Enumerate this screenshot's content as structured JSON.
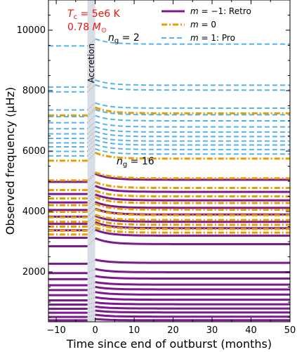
{
  "chart_data": {
    "type": "line",
    "xlabel": "Time since end of outburst (months)",
    "ylabel": "Observed frequency (μHz)",
    "xlim": [
      -12,
      50
    ],
    "ylim": [
      350,
      11000
    ],
    "x_ticks": [
      -10,
      0,
      10,
      20,
      30,
      40,
      50
    ],
    "x_tick_labels": [
      "−10",
      "0",
      "10",
      "20",
      "30",
      "40",
      "50"
    ],
    "y_ticks": [
      2000,
      4000,
      6000,
      8000,
      10000
    ],
    "y_tick_labels": [
      "2000",
      "4000",
      "6000",
      "8000",
      "10000"
    ],
    "accretion_band": {
      "x": [
        -2,
        0
      ],
      "label": "Accretion"
    },
    "annotations": {
      "tc": "T_c = 5e6 K",
      "mass": "0.78 M_⊙",
      "ng_low": "n_g = 2",
      "ng_high": "n_g = 16"
    },
    "legend_placement": "top-right",
    "series": [
      {
        "name": "m = −1: Retro",
        "color": "#7b1a8c",
        "style": "solid",
        "steady_values": [
          2920,
          3200,
          3450,
          3660,
          3900,
          4120,
          4370,
          4650,
          5050,
          400,
          520,
          660,
          790,
          930,
          1080,
          1250,
          1420,
          1580,
          1780,
          1990,
          2300
        ],
        "pre_values": [
          2850,
          3130,
          3380,
          3590,
          3830,
          4050,
          4300,
          4580,
          4980,
          400,
          510,
          650,
          780,
          920,
          1060,
          1230,
          1400,
          1560,
          1760,
          1960,
          2270
        ]
      },
      {
        "name": "m = 0",
        "color": "#e69f00",
        "style": "dashdot",
        "steady_values": [
          3300,
          3420,
          3560,
          3720,
          3880,
          4060,
          4280,
          4500,
          4780,
          5100,
          5750,
          7250
        ],
        "pre_values": [
          3240,
          3360,
          3500,
          3660,
          3810,
          3990,
          4210,
          4430,
          4710,
          5030,
          5680,
          7180
        ]
      },
      {
        "name": "m = 1: Pro",
        "color": "#56b4e9",
        "style": "dashed",
        "steady_values": [
          5900,
          6050,
          6200,
          6330,
          6480,
          6630,
          6800,
          7000,
          7200,
          7420,
          8020,
          8180,
          9540
        ],
        "pre_values": [
          5840,
          5990,
          6140,
          6270,
          6420,
          6570,
          6740,
          6940,
          7140,
          7360,
          7960,
          8120,
          9480
        ]
      }
    ]
  }
}
